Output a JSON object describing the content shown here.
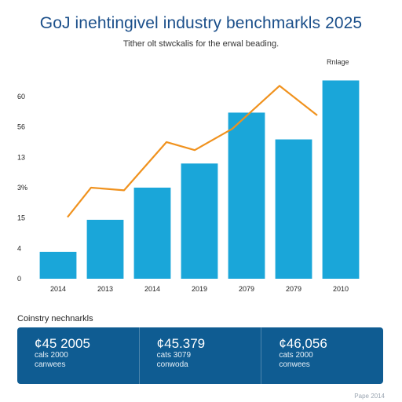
{
  "header": {
    "title": "GoJ inehtingivel industry benchmarkls 2025",
    "subtitle": "Tither olt stwckalis for the erwal beading."
  },
  "chart_data": {
    "type": "bar",
    "legend": {
      "label": "Rnlage",
      "placement": "top-right"
    },
    "categories": [
      "2014",
      "2013",
      "2014",
      "2019",
      "2079",
      "2079",
      "2010"
    ],
    "y_tick_labels": [
      "0",
      "4",
      "15",
      "3%",
      "13",
      "56",
      "60"
    ],
    "bar_values": [
      1,
      2.2,
      3.4,
      4.3,
      6.2,
      5.2,
      7.4
    ],
    "line_values": [
      2.3,
      3.4,
      3.3,
      5.1,
      4.8,
      5.6,
      7.2,
      6.1
    ],
    "line_x_positions": [
      0.2,
      0.7,
      1.4,
      2.3,
      2.9,
      3.7,
      4.7,
      5.5
    ],
    "ylim": [
      0,
      8
    ],
    "grid": false,
    "colors": {
      "bar": "#1aa6d9",
      "line": "#f0921e"
    }
  },
  "summary": {
    "label": "Coinstry nechnarkls",
    "cards": [
      {
        "value": "¢45 2005",
        "line1": "cals 2000",
        "line2": "canwees"
      },
      {
        "value": "¢45.379",
        "line1": "cats 3079",
        "line2": "conwoda"
      },
      {
        "value": "¢46,056",
        "line1": "cats 2000",
        "line2": "conwees"
      }
    ]
  },
  "footer": {
    "text": "Pape 2014"
  }
}
